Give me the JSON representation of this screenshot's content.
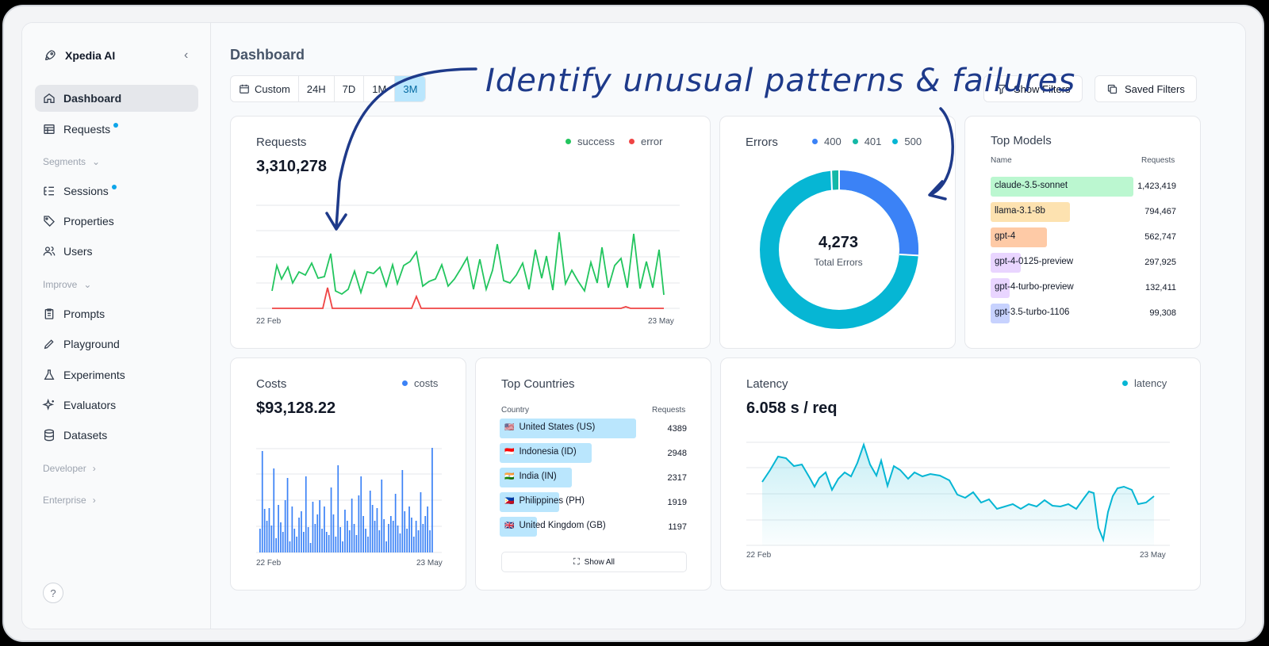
{
  "brand": {
    "name": "Xpedia AI",
    "logo_icon": "rocket-icon"
  },
  "sidebar": {
    "items": [
      {
        "label": "Dashboard",
        "icon": "home-icon",
        "active": true
      },
      {
        "label": "Requests",
        "icon": "table-icon",
        "dot": true
      },
      {
        "label": "Sessions",
        "icon": "list-tree-icon",
        "dot": true
      },
      {
        "label": "Properties",
        "icon": "tag-icon"
      },
      {
        "label": "Users",
        "icon": "users-icon"
      },
      {
        "label": "Prompts",
        "icon": "clipboard-icon"
      },
      {
        "label": "Playground",
        "icon": "pencil-icon"
      },
      {
        "label": "Experiments",
        "icon": "flask-icon"
      },
      {
        "label": "Evaluators",
        "icon": "sparkles-icon"
      },
      {
        "label": "Datasets",
        "icon": "database-icon"
      }
    ],
    "sections": {
      "segments": "Segments",
      "improve": "Improve",
      "developer": "Developer",
      "enterprise": "Enterprise"
    },
    "help": "?"
  },
  "header": {
    "title": "Dashboard",
    "ranges": [
      "Custom",
      "24H",
      "7D",
      "1M",
      "3M"
    ],
    "selected_range": "3M",
    "show_filters": "Show Filters",
    "saved_filters": "Saved Filters"
  },
  "annotation": "Identify unusual patterns & failures",
  "requests": {
    "title": "Requests",
    "total": "3,310,278",
    "legend": [
      "success",
      "error"
    ],
    "colors": {
      "success": "#22c55e",
      "error": "#ef4444"
    },
    "x_start": "22 Feb",
    "x_end": "23 May"
  },
  "errors": {
    "title": "Errors",
    "legend": [
      "400",
      "401",
      "500"
    ],
    "colors": [
      "#3b82f6",
      "#14b8a6",
      "#06b6d4"
    ],
    "total": "4,273",
    "total_label": "Total Errors"
  },
  "top_models": {
    "title": "Top Models",
    "col_name": "Name",
    "col_requests": "Requests",
    "rows": [
      {
        "name": "claude-3.5-sonnet",
        "requests": "1,423,419",
        "color": "#bbf7d0",
        "value": 1423419
      },
      {
        "name": "llama-3.1-8b",
        "requests": "794,467",
        "color": "#fde2b0",
        "value": 794467
      },
      {
        "name": "gpt-4",
        "requests": "562,747",
        "color": "#fecaa6",
        "value": 562747
      },
      {
        "name": "gpt-4-0125-preview",
        "requests": "297,925",
        "color": "#e9d5ff",
        "value": 297925
      },
      {
        "name": "gpt-4-turbo-preview",
        "requests": "132,411",
        "color": "#e9d5ff",
        "value": 132411
      },
      {
        "name": "gpt-3.5-turbo-1106",
        "requests": "99,308",
        "color": "#c7d2fe",
        "value": 99308
      }
    ]
  },
  "costs": {
    "title": "Costs",
    "total": "$93,128.22",
    "legend": "costs",
    "color": "#3b82f6",
    "x_start": "22 Feb",
    "x_end": "23 May"
  },
  "top_countries": {
    "title": "Top Countries",
    "col_country": "Country",
    "col_requests": "Requests",
    "rows": [
      {
        "flag": "🇺🇸",
        "name": "United States (US)",
        "requests": "4389",
        "value": 4389
      },
      {
        "flag": "🇮🇩",
        "name": "Indonesia (ID)",
        "requests": "2948",
        "value": 2948
      },
      {
        "flag": "🇮🇳",
        "name": "India (IN)",
        "requests": "2317",
        "value": 2317
      },
      {
        "flag": "🇵🇭",
        "name": "Philippines (PH)",
        "requests": "1919",
        "value": 1919
      },
      {
        "flag": "🇬🇧",
        "name": "United Kingdom (GB)",
        "requests": "1197",
        "value": 1197
      }
    ],
    "show_all": "Show All"
  },
  "latency": {
    "title": "Latency",
    "total": "6.058 s / req",
    "legend": "latency",
    "color": "#06b6d4",
    "x_start": "22 Feb",
    "x_end": "23 May"
  }
}
